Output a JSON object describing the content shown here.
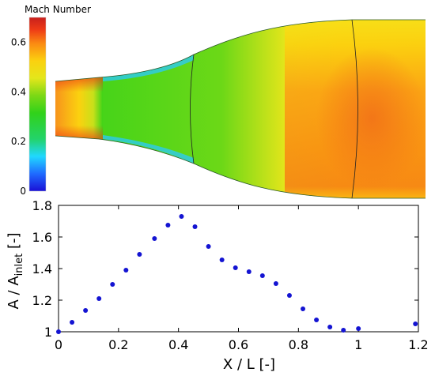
{
  "contour": {
    "title": "Mach Number",
    "colorbar_ticks": [
      "0",
      "0.2",
      "0.4",
      "0.6"
    ],
    "colormap": [
      "#1a10d6",
      "#1f6bff",
      "#20d8ff",
      "#23d36a",
      "#31d21a",
      "#7cd815",
      "#e4e61b",
      "#fbd10f",
      "#fb8a12",
      "#ee3a16",
      "#c8201d"
    ]
  },
  "chart_data": {
    "type": "scatter",
    "xlabel": "X / L [-]",
    "ylabel": {
      "main": "A / A",
      "sub": "inlet",
      "suffix": " [-]"
    },
    "xlim": [
      0,
      1.2
    ],
    "ylim": [
      1,
      1.8
    ],
    "x_ticks": [
      "0",
      "0.2",
      "0.4",
      "0.6",
      "0.8",
      "1",
      "1.2"
    ],
    "y_ticks": [
      "1",
      "1.2",
      "1.4",
      "1.6",
      "1.8"
    ],
    "marker_color": "#1414d2",
    "points": [
      {
        "x": 0.0,
        "y": 1.0
      },
      {
        "x": 0.045,
        "y": 1.06
      },
      {
        "x": 0.09,
        "y": 1.135
      },
      {
        "x": 0.135,
        "y": 1.21
      },
      {
        "x": 0.18,
        "y": 1.3
      },
      {
        "x": 0.225,
        "y": 1.39
      },
      {
        "x": 0.27,
        "y": 1.49
      },
      {
        "x": 0.32,
        "y": 1.59
      },
      {
        "x": 0.365,
        "y": 1.675
      },
      {
        "x": 0.41,
        "y": 1.73
      },
      {
        "x": 0.455,
        "y": 1.665
      },
      {
        "x": 0.5,
        "y": 1.54
      },
      {
        "x": 0.545,
        "y": 1.455
      },
      {
        "x": 0.59,
        "y": 1.405
      },
      {
        "x": 0.635,
        "y": 1.38
      },
      {
        "x": 0.68,
        "y": 1.355
      },
      {
        "x": 0.725,
        "y": 1.305
      },
      {
        "x": 0.77,
        "y": 1.23
      },
      {
        "x": 0.815,
        "y": 1.145
      },
      {
        "x": 0.86,
        "y": 1.075
      },
      {
        "x": 0.905,
        "y": 1.03
      },
      {
        "x": 0.95,
        "y": 1.01
      },
      {
        "x": 1.0,
        "y": 1.02
      },
      {
        "x": 1.19,
        "y": 1.05
      }
    ]
  }
}
